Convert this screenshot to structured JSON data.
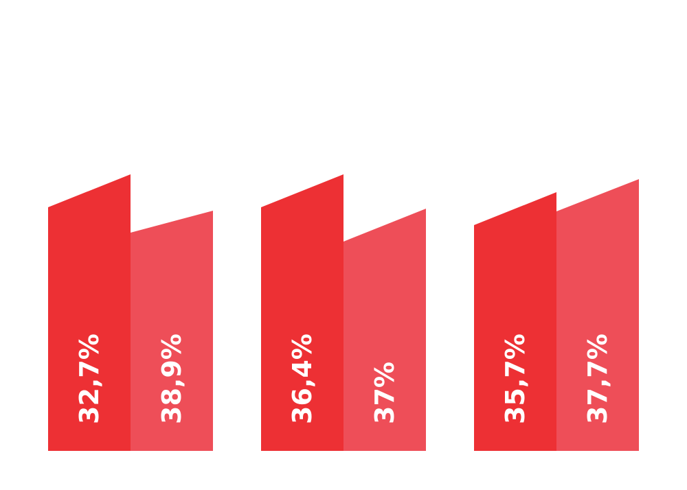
{
  "chart_data": {
    "type": "bar",
    "title": "",
    "xlabel": "",
    "ylabel": "",
    "groups": [
      {
        "values": [
          "32,7%",
          "38,9%"
        ],
        "numbers": [
          32.7,
          38.9
        ]
      },
      {
        "values": [
          "36,4%",
          "37%"
        ],
        "numbers": [
          36.4,
          37
        ]
      },
      {
        "values": [
          "35,7%",
          "37,7%"
        ],
        "numbers": [
          35.7,
          37.7
        ]
      }
    ],
    "colors": [
      "#ed3034",
      "#ee4e58"
    ],
    "grid": false,
    "legend": "none"
  }
}
